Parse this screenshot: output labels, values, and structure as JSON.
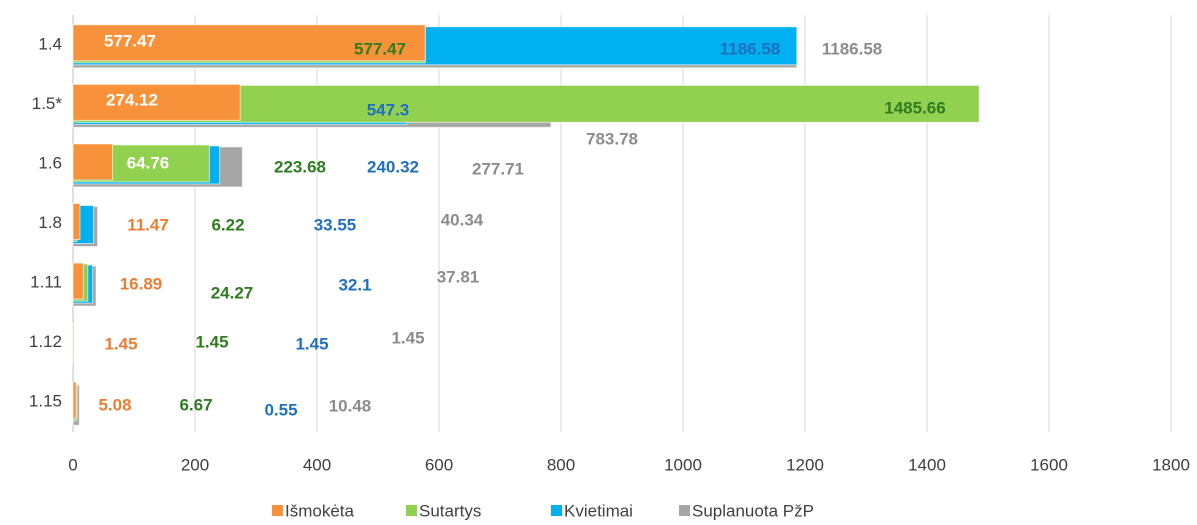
{
  "chart_data": {
    "type": "bar",
    "orientation": "horizontal",
    "categories": [
      "1.4",
      "1.5*",
      "1.6",
      "1.8",
      "1.11",
      "1.12",
      "1.15"
    ],
    "series": [
      {
        "name": "Išmokėta",
        "color": "#f7923a",
        "values": [
          577.47,
          274.12,
          64.76,
          11.47,
          16.89,
          1.45,
          5.08
        ]
      },
      {
        "name": "Sutartys",
        "color": "#92d050",
        "values": [
          577.47,
          1485.66,
          223.68,
          6.22,
          24.27,
          1.45,
          6.67
        ]
      },
      {
        "name": "Kvietimai",
        "color": "#00b0f0",
        "values": [
          1186.58,
          547.3,
          240.32,
          33.55,
          32.1,
          1.45,
          0.55
        ]
      },
      {
        "name": "Suplanuota PžP",
        "color": "#a6a6a6",
        "values": [
          1186.58,
          783.78,
          277.71,
          40.34,
          37.81,
          1.45,
          10.48
        ]
      }
    ],
    "xlim": [
      0,
      1800
    ],
    "xticks": [
      0,
      200,
      400,
      600,
      800,
      1000,
      1200,
      1400,
      1600,
      1800
    ],
    "grid": true,
    "legend": "bottom"
  }
}
